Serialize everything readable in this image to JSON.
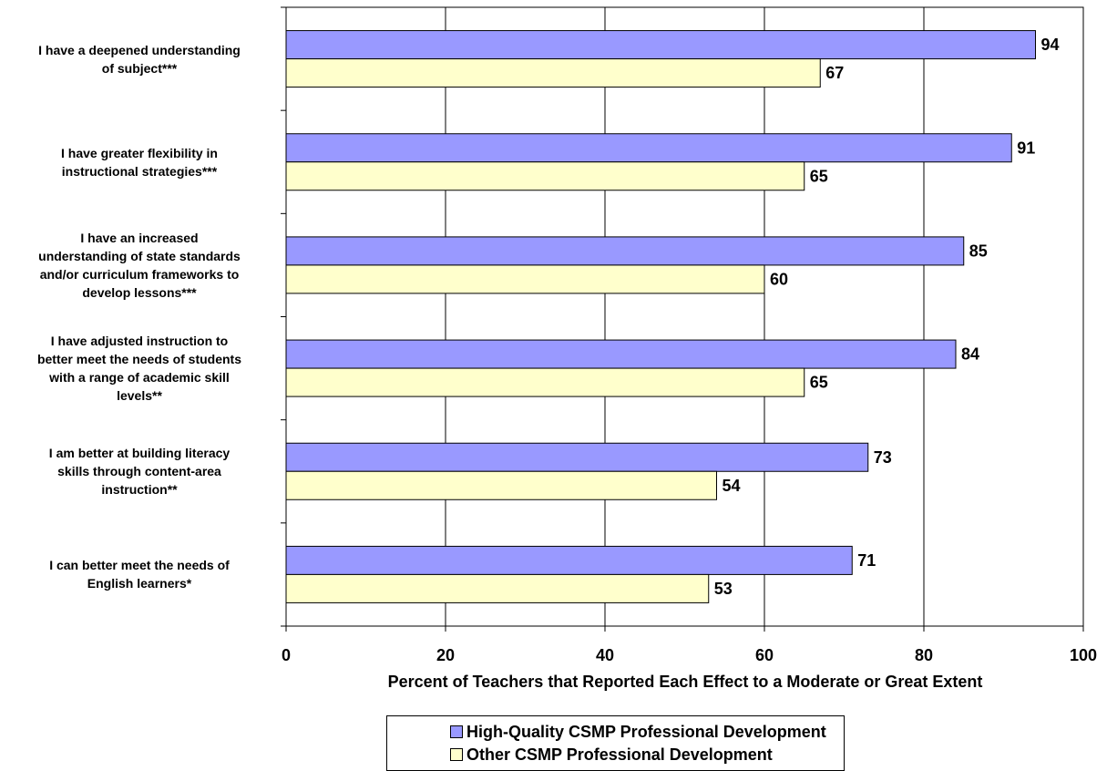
{
  "chart_data": {
    "type": "bar",
    "orientation": "horizontal",
    "categories": [
      "I have a deepened understanding of subject***",
      "I have greater flexibility in instructional strategies***",
      "I have an increased understanding of state standards and/or curriculum frameworks to develop lessons***",
      "I have adjusted instruction to better meet the needs of students with a range of academic skill levels**",
      "I am better at building literacy skills through content-area instruction**",
      "I can better meet the needs of English learners*"
    ],
    "series": [
      {
        "name": "High-Quality CSMP Professional Development",
        "color": "#9999ff",
        "values": [
          94,
          91,
          85,
          84,
          73,
          71
        ]
      },
      {
        "name": "Other CSMP Professional Development",
        "color": "#ffffcc",
        "values": [
          67,
          65,
          60,
          65,
          54,
          53
        ]
      }
    ],
    "xlabel": "Percent of Teachers that Reported Each Effect to a Moderate or Great Extent",
    "ylabel": "",
    "xlim": [
      0,
      100
    ],
    "xticks": [
      "0",
      "20",
      "40",
      "60",
      "80",
      "100"
    ],
    "data_labels": true,
    "grid": "vertical",
    "legend_position": "bottom"
  }
}
